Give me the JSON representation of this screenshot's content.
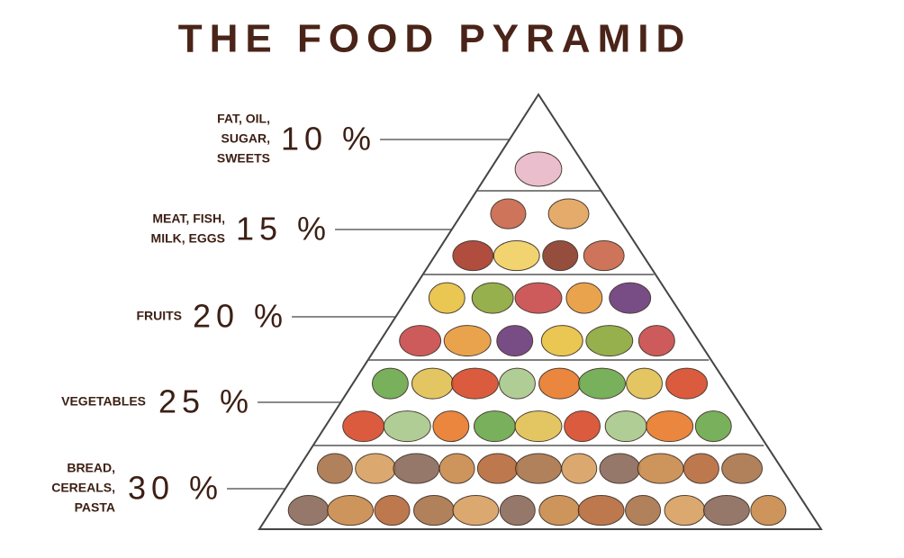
{
  "title": "THE FOOD PYRAMID",
  "levels": [
    {
      "label": [
        "FAT, OIL,",
        "SUGAR,",
        "SWEETS"
      ],
      "percent": "10 %"
    },
    {
      "label": [
        "MEAT, FISH,",
        "MILK, EGGS"
      ],
      "percent": "15 %"
    },
    {
      "label": [
        "FRUITS"
      ],
      "percent": "20 %"
    },
    {
      "label": [
        "VEGETABLES"
      ],
      "percent": "25 %"
    },
    {
      "label": [
        "BREAD,",
        "CEREALS,",
        "PASTA"
      ],
      "percent": "30 %"
    }
  ]
}
